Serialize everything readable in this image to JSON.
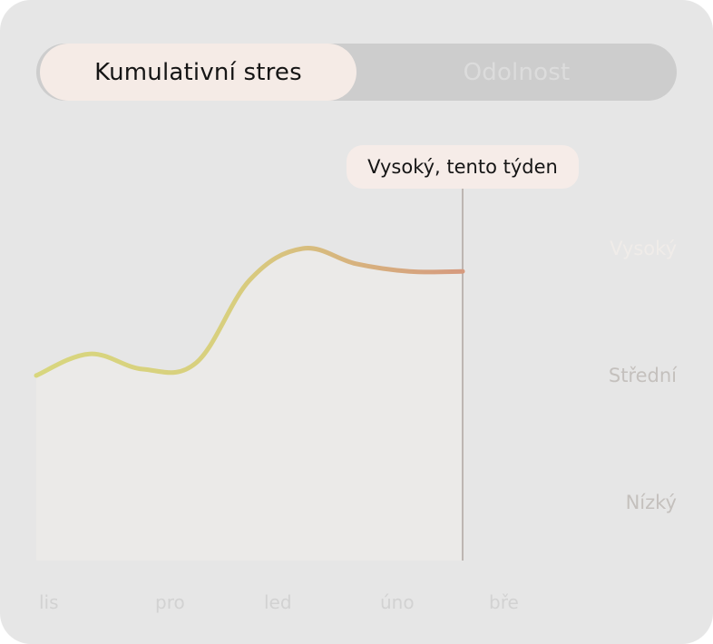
{
  "toggle": {
    "active_label": "Kumulativní stres",
    "inactive_label": "Odolnost"
  },
  "tooltip": {
    "text": "Vysoký, tento týden"
  },
  "colors": {
    "line_start": "#d8d67e",
    "line_end": "#d69a7e",
    "marker": "#bdb6b2",
    "fill": "#ebeae8"
  },
  "chart_data": {
    "type": "line",
    "x": [
      "lis",
      "",
      "pro",
      "",
      "led",
      "",
      "úno",
      "",
      "bře"
    ],
    "x_ticks": [
      "lis",
      "pro",
      "led",
      "úno",
      "bře"
    ],
    "y_levels": [
      "Vysoký",
      "Střední",
      "Nízký"
    ],
    "series": [
      {
        "values": [
          2.0,
          2.17,
          2.05,
          2.1,
          2.75,
          3.0,
          2.88,
          2.82,
          2.82
        ]
      }
    ],
    "ylim": [
      1,
      3.2
    ],
    "current_point": "Vysoký, tento týden"
  }
}
